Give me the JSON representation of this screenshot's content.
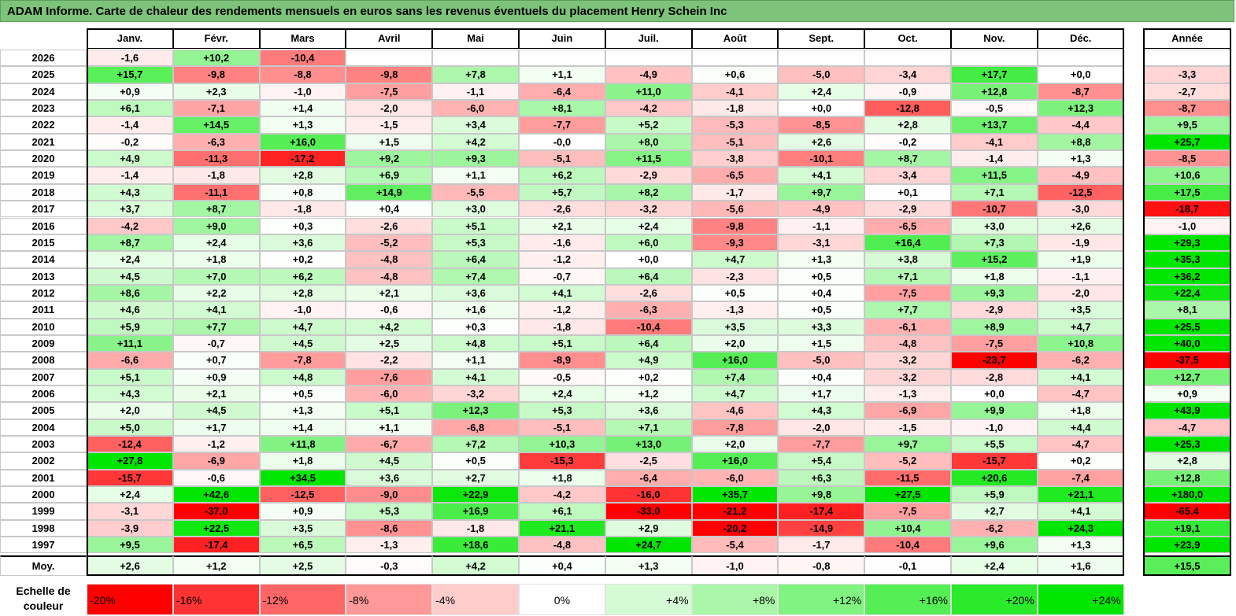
{
  "title": "ADAM Informe. Carte de chaleur des rendements mensuels en euros sans les revenus éventuels du placement Henry Schein Inc",
  "months": [
    "Janv.",
    "Févr.",
    "Mars",
    "Avril",
    "Mai",
    "Juin",
    "Juil.",
    "Août",
    "Sept.",
    "Oct.",
    "Nov.",
    "Déc."
  ],
  "year_header": "Année",
  "avg_label": "Moy.",
  "legend_label": "Echelle de couleur",
  "chart_data": {
    "type": "heatmap",
    "title": "ADAM Informe. Carte de chaleur des rendements mensuels en euros sans les revenus éventuels du placement Henry Schein Inc",
    "unit": "%",
    "color_scale": {
      "min": -20,
      "max": 24,
      "negative": "#ff0000",
      "neutral": "#ffffff",
      "positive": "#00e600"
    },
    "rows": [
      {
        "year": "2026",
        "values": [
          "-1,6",
          "+10,2",
          "-10,4",
          "",
          "",
          "",
          "",
          "",
          "",
          "",
          "",
          ""
        ],
        "annual": ""
      },
      {
        "year": "2025",
        "values": [
          "+15,7",
          "-9,8",
          "-8,8",
          "-9,8",
          "+7,8",
          "+1,1",
          "-4,9",
          "+0,6",
          "-5,0",
          "-3,4",
          "+17,7",
          "+0,0"
        ],
        "annual": "-3,3"
      },
      {
        "year": "2024",
        "values": [
          "+0,9",
          "+2,3",
          "-1,0",
          "-7,5",
          "-1,1",
          "-6,4",
          "+11,0",
          "-4,1",
          "+2,4",
          "-0,9",
          "+12,8",
          "-8,7"
        ],
        "annual": "-2,7"
      },
      {
        "year": "2023",
        "values": [
          "+6,1",
          "-7,1",
          "+1,4",
          "-2,0",
          "-6,0",
          "+8,1",
          "-4,2",
          "-1,8",
          "+0,0",
          "-12,8",
          "-0,5",
          "+12,3"
        ],
        "annual": "-8,7"
      },
      {
        "year": "2022",
        "values": [
          "-1,4",
          "+14,5",
          "+1,3",
          "-1,5",
          "+3,4",
          "-7,7",
          "+5,2",
          "-5,3",
          "-8,5",
          "+2,8",
          "+13,7",
          "-4,4"
        ],
        "annual": "+9,5"
      },
      {
        "year": "2021",
        "values": [
          "-0,2",
          "-6,3",
          "+16,0",
          "+1,5",
          "+4,2",
          "-0,0",
          "+8,0",
          "-5,1",
          "+2,6",
          "-0,2",
          "-4,1",
          "+8,8"
        ],
        "annual": "+25,7"
      },
      {
        "year": "2020",
        "values": [
          "+4,9",
          "-11,3",
          "-17,2",
          "+9,2",
          "+9,3",
          "-5,1",
          "+11,5",
          "-3,8",
          "-10,1",
          "+8,7",
          "-1,4",
          "+1,3"
        ],
        "annual": "-8,5"
      },
      {
        "year": "2019",
        "values": [
          "-1,4",
          "-1,8",
          "+2,8",
          "+6,9",
          "+1,1",
          "+6,2",
          "-2,9",
          "-6,5",
          "+4,1",
          "-3,4",
          "+11,5",
          "-4,9"
        ],
        "annual": "+10,6"
      },
      {
        "year": "2018",
        "values": [
          "+4,3",
          "-11,1",
          "+0,8",
          "+14,9",
          "-5,5",
          "+5,7",
          "+8,2",
          "-1,7",
          "+9,7",
          "+0,1",
          "+7,1",
          "-12,5"
        ],
        "annual": "+17,5"
      },
      {
        "year": "2017",
        "values": [
          "+3,7",
          "+8,7",
          "-1,8",
          "+0,4",
          "+3,0",
          "-2,6",
          "-3,2",
          "-5,6",
          "-4,9",
          "-2,9",
          "-10,7",
          "-3,0"
        ],
        "annual": "-18,7"
      },
      {
        "year": "2016",
        "values": [
          "-4,2",
          "+9,0",
          "+0,3",
          "-2,6",
          "+5,1",
          "+2,1",
          "+2,4",
          "-9,8",
          "-1,1",
          "-6,5",
          "+3,0",
          "+2,6"
        ],
        "annual": "-1,0"
      },
      {
        "year": "2015",
        "values": [
          "+8,7",
          "+2,4",
          "+3,6",
          "-5,2",
          "+5,3",
          "-1,6",
          "+6,0",
          "-9,3",
          "-3,1",
          "+16,4",
          "+7,3",
          "-1,9"
        ],
        "annual": "+29,3"
      },
      {
        "year": "2014",
        "values": [
          "+2,4",
          "+1,8",
          "+0,2",
          "-4,8",
          "+6,4",
          "-1,2",
          "+0,0",
          "+4,7",
          "+1,3",
          "+3,8",
          "+15,2",
          "+1,9"
        ],
        "annual": "+35,3"
      },
      {
        "year": "2013",
        "values": [
          "+4,5",
          "+7,0",
          "+6,2",
          "-4,8",
          "+7,4",
          "-0,7",
          "+6,4",
          "-2,3",
          "+0,5",
          "+7,1",
          "+1,8",
          "-1,1"
        ],
        "annual": "+36,2"
      },
      {
        "year": "2012",
        "values": [
          "+8,6",
          "+2,2",
          "+2,8",
          "+2,1",
          "+3,6",
          "+4,1",
          "-2,6",
          "+0,5",
          "+0,4",
          "-7,5",
          "+9,3",
          "-2,0"
        ],
        "annual": "+22,4"
      },
      {
        "year": "2011",
        "values": [
          "+4,6",
          "+4,1",
          "-1,0",
          "-0,6",
          "+1,6",
          "-1,2",
          "-6,3",
          "-1,3",
          "+0,5",
          "+7,7",
          "-2,9",
          "+3,5"
        ],
        "annual": "+8,1"
      },
      {
        "year": "2010",
        "values": [
          "+5,9",
          "+7,7",
          "+4,7",
          "+4,2",
          "+0,3",
          "-1,8",
          "-10,4",
          "+3,5",
          "+3,3",
          "-6,1",
          "+8,9",
          "+4,7"
        ],
        "annual": "+25,5"
      },
      {
        "year": "2009",
        "values": [
          "+11,1",
          "-0,7",
          "+4,5",
          "+2,5",
          "+4,8",
          "+5,1",
          "+6,4",
          "+2,0",
          "+1,5",
          "-4,8",
          "-7,5",
          "+10,8"
        ],
        "annual": "+40,0"
      },
      {
        "year": "2008",
        "values": [
          "-6,6",
          "+0,7",
          "-7,8",
          "-2,2",
          "+1,1",
          "-8,9",
          "+4,9",
          "+16,0",
          "-5,0",
          "-3,2",
          "-23,7",
          "-6,2"
        ],
        "annual": "-37,5"
      },
      {
        "year": "2007",
        "values": [
          "+5,1",
          "+0,9",
          "+4,8",
          "-7,6",
          "+4,1",
          "-0,5",
          "+0,2",
          "+7,4",
          "+0,4",
          "-3,2",
          "-2,8",
          "+4,1"
        ],
        "annual": "+12,7"
      },
      {
        "year": "2006",
        "values": [
          "+4,3",
          "+2,1",
          "+0,5",
          "-6,0",
          "-3,2",
          "+2,4",
          "+1,2",
          "+4,7",
          "+1,7",
          "-1,3",
          "+0,0",
          "-4,7"
        ],
        "annual": "+0,9"
      },
      {
        "year": "2005",
        "values": [
          "+2,0",
          "+4,5",
          "+1,3",
          "+5,1",
          "+12,3",
          "+5,3",
          "+3,6",
          "-4,6",
          "+4,3",
          "-6,9",
          "+9,9",
          "+1,8"
        ],
        "annual": "+43,9"
      },
      {
        "year": "2004",
        "values": [
          "+5,0",
          "+1,7",
          "+1,4",
          "+1,1",
          "-6,8",
          "-5,1",
          "+7,1",
          "-7,8",
          "-2,0",
          "-1,5",
          "-1,0",
          "+4,4"
        ],
        "annual": "-4,7"
      },
      {
        "year": "2003",
        "values": [
          "-12,4",
          "-1,2",
          "+11,8",
          "-6,7",
          "+7,2",
          "+10,3",
          "+13,0",
          "+2,0",
          "-7,7",
          "+9,7",
          "+5,5",
          "-4,7"
        ],
        "annual": "+25,3"
      },
      {
        "year": "2002",
        "values": [
          "+27,8",
          "-6,9",
          "+1,8",
          "+4,5",
          "+0,5",
          "-15,3",
          "-2,5",
          "+16,0",
          "+5,4",
          "-5,2",
          "-15,7",
          "+0,2"
        ],
        "annual": "+2,8"
      },
      {
        "year": "2001",
        "values": [
          "-15,7",
          "-0,6",
          "+34,5",
          "+3,6",
          "+2,7",
          "+1,8",
          "-6,4",
          "-6,0",
          "+6,3",
          "-11,5",
          "+20,6",
          "-7,4"
        ],
        "annual": "+12,8"
      },
      {
        "year": "2000",
        "values": [
          "+2,4",
          "+42,6",
          "-12,5",
          "-9,0",
          "+22,9",
          "-4,2",
          "-16,0",
          "+35,7",
          "+9,8",
          "+27,5",
          "+5,9",
          "+21,1"
        ],
        "annual": "+180,0"
      },
      {
        "year": "1999",
        "values": [
          "-3,1",
          "-37,0",
          "+0,9",
          "+5,3",
          "+16,9",
          "+6,1",
          "-33,0",
          "-21,2",
          "-17,4",
          "-7,5",
          "+2,7",
          "+4,1"
        ],
        "annual": "-65,4"
      },
      {
        "year": "1998",
        "values": [
          "-3,9",
          "+22,5",
          "+3,5",
          "-8,6",
          "-1,8",
          "+21,1",
          "+2,9",
          "-20,2",
          "-14,9",
          "+10,4",
          "-6,2",
          "+24,3"
        ],
        "annual": "+19,1"
      },
      {
        "year": "1997",
        "values": [
          "+9,5",
          "-17,4",
          "+6,5",
          "-1,3",
          "+18,6",
          "-4,8",
          "+24,7",
          "-5,4",
          "-1,7",
          "-10,4",
          "+9,6",
          "+1,3"
        ],
        "annual": "+23,9"
      }
    ],
    "average": {
      "values": [
        "+2,6",
        "+1,2",
        "+2,5",
        "-0,3",
        "+4,2",
        "+0,4",
        "+1,3",
        "-1,0",
        "-0,8",
        "-0,1",
        "+2,4",
        "+1,6"
      ],
      "annual": "+15,5"
    },
    "legend": [
      {
        "label": "-20%",
        "value": -20
      },
      {
        "label": "-16%",
        "value": -16
      },
      {
        "label": "-12%",
        "value": -12
      },
      {
        "label": "-8%",
        "value": -8
      },
      {
        "label": "-4%",
        "value": -4
      },
      {
        "label": "0%",
        "value": 0
      },
      {
        "label": "+4%",
        "value": 4
      },
      {
        "label": "+8%",
        "value": 8
      },
      {
        "label": "+12%",
        "value": 12
      },
      {
        "label": "+16%",
        "value": 16
      },
      {
        "label": "+20%",
        "value": 20
      },
      {
        "label": "+24%",
        "value": 24
      }
    ]
  }
}
